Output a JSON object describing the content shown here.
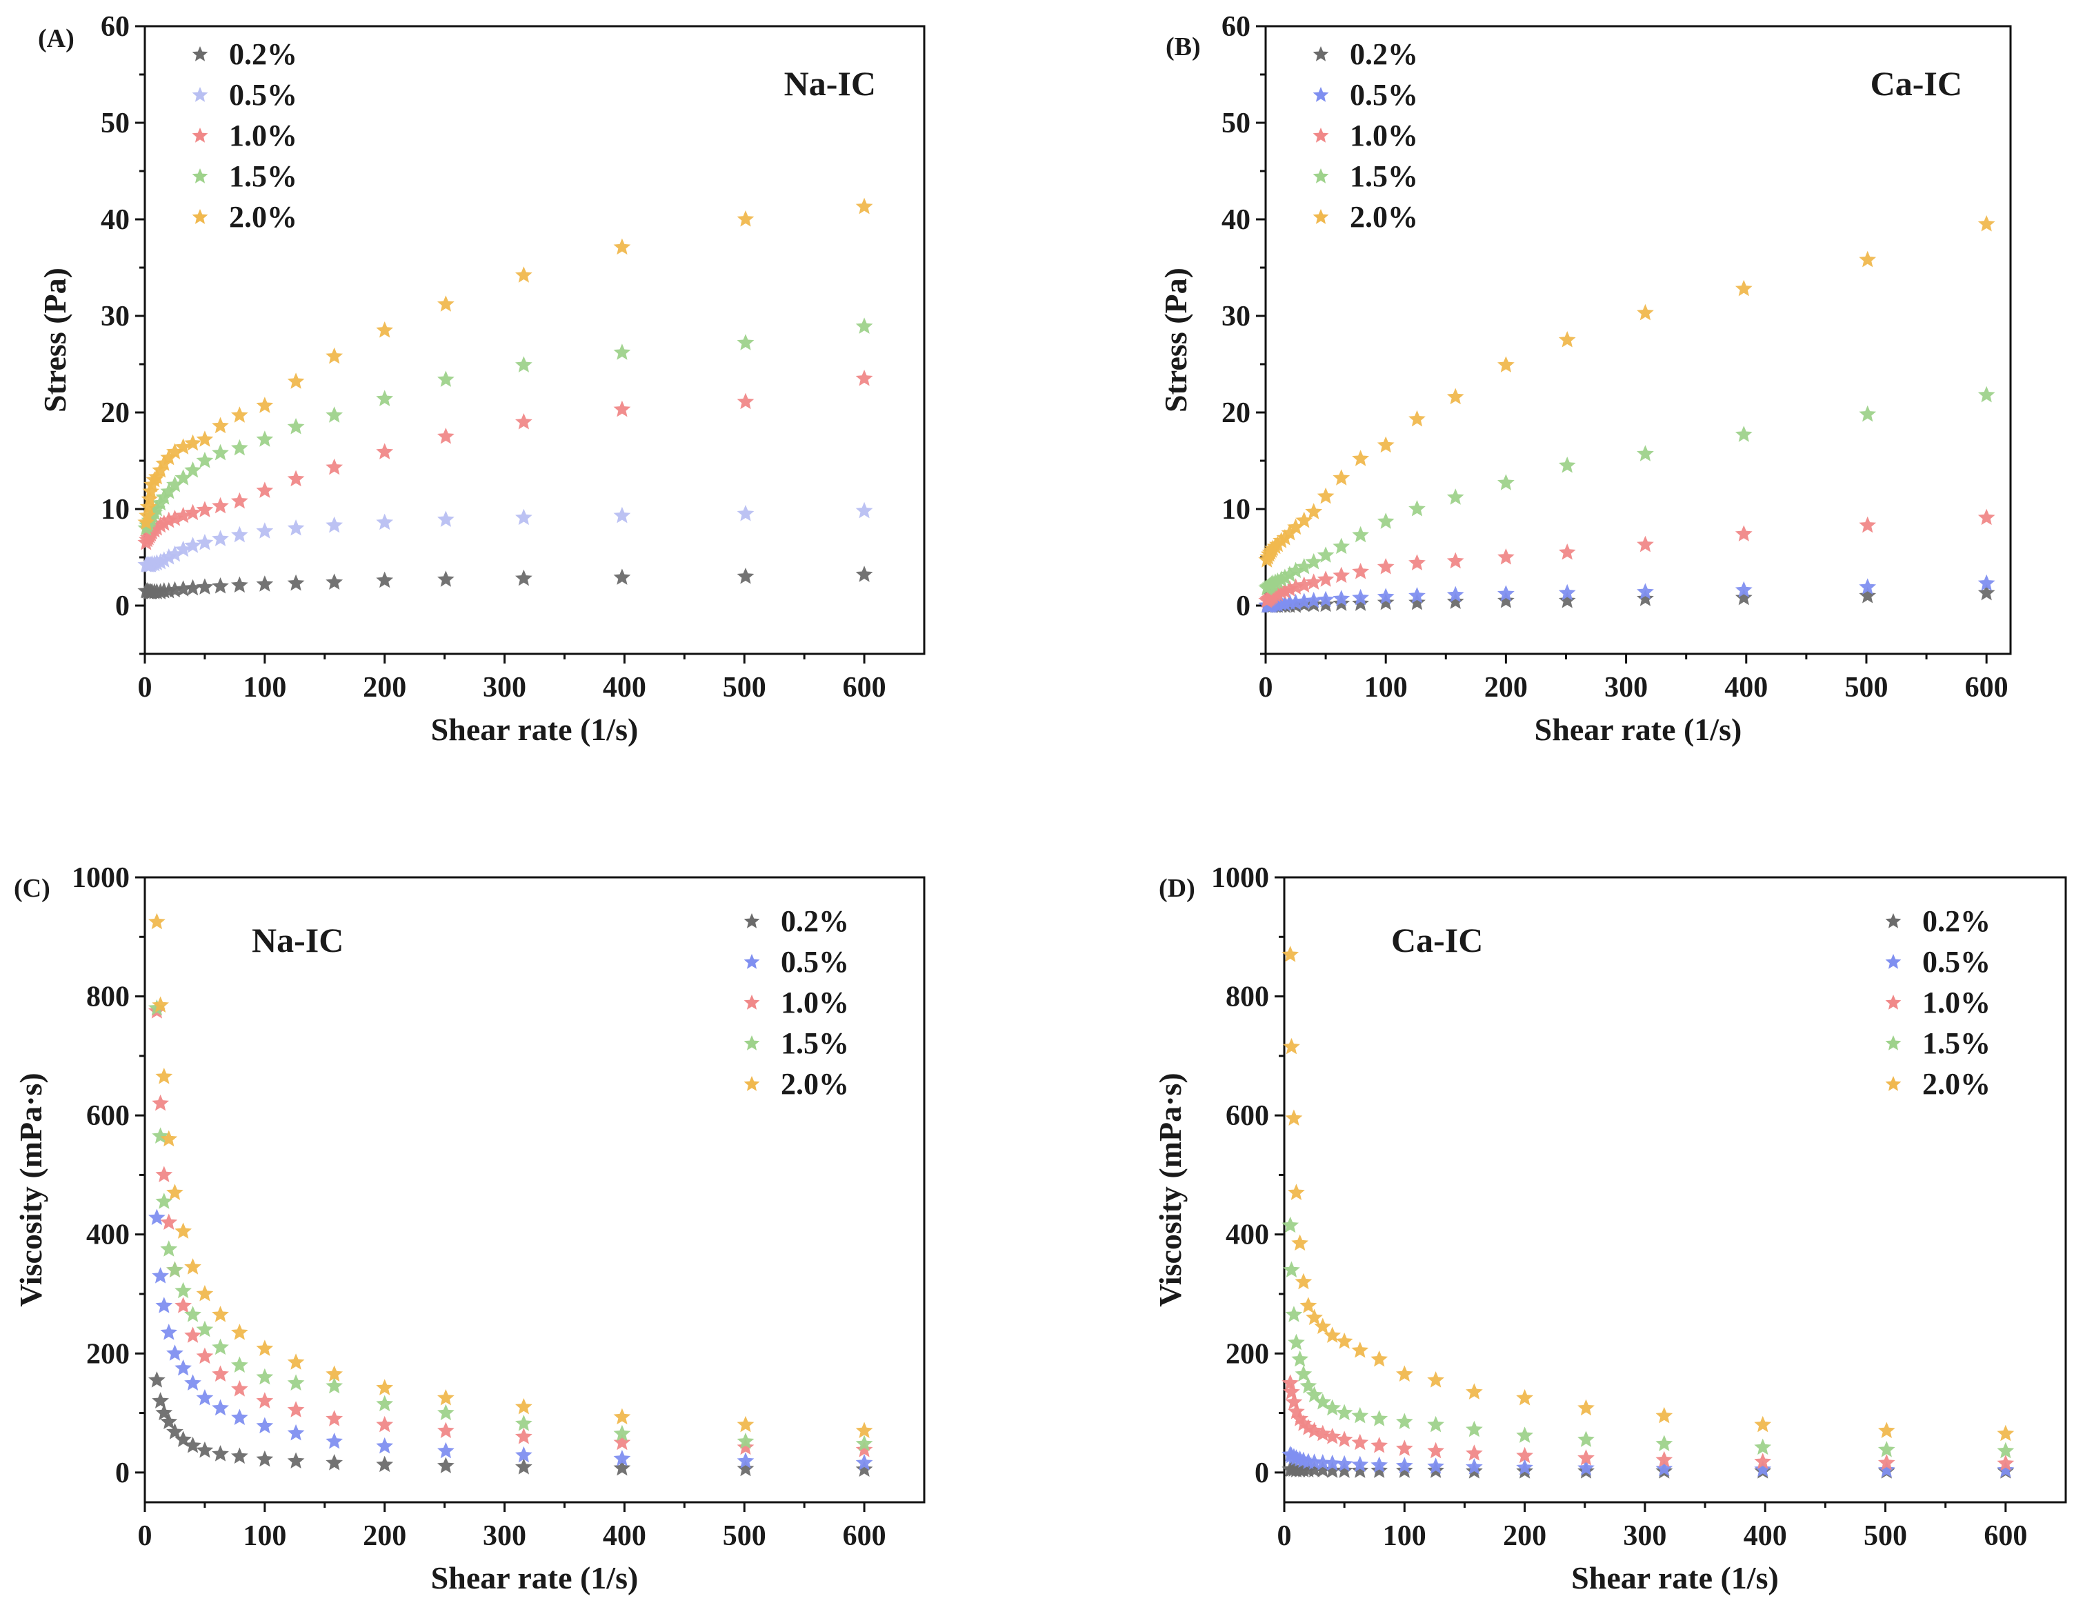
{
  "chart_data": [
    {
      "type": "scatter",
      "panel": "(A)",
      "title": "Na-IC",
      "xlabel": "Shear rate (1/s)",
      "ylabel": "Stress (Pa)",
      "xlim": [
        0,
        650
      ],
      "ylim": [
        -5,
        60
      ],
      "xticks": [
        0,
        100,
        200,
        300,
        400,
        500,
        600
      ],
      "yticks": [
        0,
        10,
        20,
        30,
        40,
        50,
        60
      ],
      "legend_position": "top-left",
      "title_position": "top-right",
      "x": [
        1,
        2,
        3,
        4,
        5,
        6,
        8,
        10,
        13,
        16,
        20,
        25,
        32,
        40,
        50,
        63,
        79,
        100,
        126,
        158,
        200,
        251,
        316,
        398,
        501,
        600
      ],
      "series": [
        {
          "name": "0.2%",
          "color": "#6b6b6b",
          "values": [
            1.5,
            1.5,
            1.4,
            1.4,
            1.4,
            1.4,
            1.4,
            1.4,
            1.4,
            1.5,
            1.5,
            1.6,
            1.7,
            1.8,
            1.9,
            2.0,
            2.1,
            2.2,
            2.3,
            2.4,
            2.6,
            2.7,
            2.8,
            2.9,
            3.0,
            3.2
          ]
        },
        {
          "name": "0.5%",
          "color": "#b8bff2",
          "values": [
            4.2,
            4.2,
            4.2,
            4.2,
            4.2,
            4.3,
            4.3,
            4.4,
            4.5,
            4.7,
            5.0,
            5.3,
            5.8,
            6.2,
            6.5,
            6.9,
            7.3,
            7.7,
            8.0,
            8.3,
            8.6,
            8.9,
            9.1,
            9.3,
            9.5,
            9.8
          ]
        },
        {
          "name": "1.0%",
          "color": "#f08888",
          "values": [
            6.5,
            6.8,
            7.0,
            7.2,
            7.4,
            7.6,
            7.8,
            8.0,
            8.3,
            8.5,
            8.8,
            9.0,
            9.3,
            9.6,
            9.9,
            10.3,
            10.8,
            11.9,
            13.1,
            14.3,
            15.9,
            17.5,
            19.0,
            20.3,
            21.1,
            23.5
          ]
        },
        {
          "name": "1.5%",
          "color": "#9ed28b",
          "values": [
            8.0,
            8.3,
            8.5,
            8.8,
            9.0,
            9.3,
            9.6,
            10.0,
            10.6,
            11.2,
            11.8,
            12.5,
            13.2,
            14.0,
            15.0,
            15.8,
            16.3,
            17.2,
            18.5,
            19.7,
            21.4,
            23.4,
            24.9,
            26.2,
            27.2,
            28.9
          ]
        },
        {
          "name": "2.0%",
          "color": "#f0b84e",
          "values": [
            8.6,
            9.3,
            10.2,
            11.0,
            11.8,
            12.5,
            13.0,
            13.3,
            14.0,
            14.7,
            15.3,
            15.9,
            16.4,
            16.8,
            17.2,
            18.6,
            19.7,
            20.7,
            23.2,
            25.8,
            28.5,
            31.2,
            34.2,
            37.1,
            40.0,
            41.3
          ]
        }
      ]
    },
    {
      "type": "scatter",
      "panel": "(B)",
      "title": "Ca-IC",
      "xlabel": "Shear rate (1/s)",
      "ylabel": "Stress (Pa)",
      "xlim": [
        0,
        620
      ],
      "ylim": [
        -5,
        60
      ],
      "xticks": [
        0,
        100,
        200,
        300,
        400,
        500,
        600
      ],
      "yticks": [
        0,
        10,
        20,
        30,
        40,
        50,
        60
      ],
      "legend_position": "top-left",
      "title_position": "top-right",
      "x": [
        1,
        2,
        3,
        4,
        5,
        6,
        8,
        10,
        13,
        16,
        20,
        25,
        32,
        40,
        50,
        63,
        79,
        100,
        126,
        158,
        200,
        251,
        316,
        398,
        501,
        600
      ],
      "series": [
        {
          "name": "0.2%",
          "color": "#6b6b6b",
          "values": [
            0.0,
            0.0,
            0.0,
            0.0,
            0.0,
            0.0,
            0.0,
            0.0,
            0.0,
            0.0,
            0.0,
            0.0,
            0.1,
            0.1,
            0.1,
            0.2,
            0.2,
            0.3,
            0.3,
            0.4,
            0.5,
            0.5,
            0.7,
            0.8,
            1.0,
            1.3
          ]
        },
        {
          "name": "0.5%",
          "color": "#7f8ff0",
          "values": [
            0.0,
            0.0,
            0.0,
            0.0,
            0.0,
            0.1,
            0.1,
            0.1,
            0.2,
            0.2,
            0.3,
            0.3,
            0.4,
            0.5,
            0.6,
            0.7,
            0.8,
            0.9,
            1.0,
            1.1,
            1.2,
            1.3,
            1.4,
            1.6,
            1.9,
            2.3
          ]
        },
        {
          "name": "1.0%",
          "color": "#f08888",
          "values": [
            0.5,
            0.6,
            0.7,
            0.8,
            0.9,
            1.0,
            1.1,
            1.2,
            1.4,
            1.5,
            1.7,
            1.9,
            2.1,
            2.4,
            2.7,
            3.1,
            3.5,
            4.0,
            4.4,
            4.6,
            5.0,
            5.5,
            6.3,
            7.4,
            8.3,
            9.1
          ]
        },
        {
          "name": "1.5%",
          "color": "#9ed28b",
          "values": [
            1.8,
            1.9,
            2.0,
            2.1,
            2.2,
            2.3,
            2.4,
            2.5,
            2.7,
            2.9,
            3.2,
            3.6,
            4.0,
            4.5,
            5.2,
            6.1,
            7.3,
            8.7,
            10.0,
            11.2,
            12.7,
            14.5,
            15.7,
            17.7,
            19.8,
            21.8
          ]
        },
        {
          "name": "2.0%",
          "color": "#f0b84e",
          "values": [
            4.7,
            5.0,
            5.3,
            5.5,
            5.7,
            5.9,
            6.1,
            6.3,
            6.7,
            7.0,
            7.5,
            8.1,
            8.8,
            9.7,
            11.3,
            13.2,
            15.2,
            16.6,
            19.3,
            21.6,
            24.9,
            27.5,
            30.3,
            32.8,
            35.8,
            39.5
          ]
        }
      ]
    },
    {
      "type": "scatter",
      "panel": "(C)",
      "title": "Na-IC",
      "xlabel": "Shear rate (1/s)",
      "ylabel": "Viscosity (mPa·s)",
      "xlim": [
        0,
        650
      ],
      "ylim": [
        -50,
        1000
      ],
      "xticks": [
        0,
        100,
        200,
        300,
        400,
        500,
        600
      ],
      "yticks": [
        0,
        200,
        400,
        600,
        800,
        1000
      ],
      "legend_position": "top-right",
      "title_position": "top-left",
      "x": [
        10,
        13,
        16,
        20,
        25,
        32,
        40,
        50,
        63,
        79,
        100,
        126,
        158,
        200,
        251,
        316,
        398,
        501,
        600
      ],
      "series": [
        {
          "name": "0.2%",
          "color": "#6b6b6b",
          "values": [
            155,
            120,
            100,
            85,
            68,
            55,
            45,
            37,
            31,
            27,
            22,
            19,
            16,
            13,
            11,
            9,
            7,
            6,
            5
          ]
        },
        {
          "name": "0.5%",
          "color": "#7f8ff0",
          "values": [
            428,
            330,
            280,
            235,
            200,
            175,
            150,
            125,
            108,
            92,
            78,
            66,
            52,
            44,
            36,
            29,
            23,
            19,
            16
          ]
        },
        {
          "name": "1.0%",
          "color": "#f08888",
          "values": [
            775,
            620,
            500,
            420,
            340,
            280,
            230,
            195,
            165,
            140,
            120,
            105,
            90,
            80,
            70,
            60,
            50,
            42,
            38
          ]
        },
        {
          "name": "1.5%",
          "color": "#9ed28b",
          "values": [
            780,
            565,
            455,
            375,
            340,
            305,
            265,
            240,
            210,
            180,
            160,
            150,
            145,
            115,
            100,
            82,
            65,
            52,
            48
          ]
        },
        {
          "name": "2.0%",
          "color": "#f0b84e",
          "values": [
            925,
            785,
            665,
            560,
            470,
            405,
            345,
            300,
            265,
            235,
            208,
            185,
            165,
            142,
            125,
            110,
            93,
            80,
            70
          ]
        }
      ]
    },
    {
      "type": "scatter",
      "panel": "(D)",
      "title": "Ca-IC",
      "xlabel": "Shear rate (1/s)",
      "ylabel": "Viscosity (mPa·s)",
      "xlim": [
        0,
        650
      ],
      "ylim": [
        -50,
        1000
      ],
      "xticks": [
        0,
        100,
        200,
        300,
        400,
        500,
        600
      ],
      "yticks": [
        0,
        200,
        400,
        600,
        800,
        1000
      ],
      "legend_position": "top-right",
      "title_position": "top-left",
      "x": [
        5,
        6,
        8,
        10,
        13,
        16,
        20,
        25,
        32,
        40,
        50,
        63,
        79,
        100,
        126,
        158,
        200,
        251,
        316,
        398,
        501,
        600
      ],
      "series": [
        {
          "name": "0.2%",
          "color": "#6b6b6b",
          "values": [
            5,
            5,
            5,
            4,
            4,
            4,
            4,
            4,
            4,
            3,
            3,
            3,
            3,
            3,
            3,
            2,
            2,
            2,
            2,
            2,
            2,
            2
          ]
        },
        {
          "name": "0.5%",
          "color": "#7f8ff0",
          "values": [
            30,
            28,
            26,
            24,
            22,
            20,
            18,
            17,
            16,
            15,
            14,
            13,
            12,
            11,
            10,
            9,
            8,
            7,
            6,
            5,
            4,
            4
          ]
        },
        {
          "name": "1.0%",
          "color": "#f08888",
          "values": [
            150,
            135,
            118,
            102,
            90,
            82,
            75,
            70,
            65,
            60,
            55,
            50,
            45,
            40,
            36,
            32,
            28,
            24,
            21,
            18,
            16,
            15
          ]
        },
        {
          "name": "1.5%",
          "color": "#9ed28b",
          "values": [
            415,
            340,
            265,
            218,
            190,
            165,
            145,
            130,
            118,
            108,
            100,
            95,
            90,
            85,
            80,
            72,
            62,
            55,
            48,
            42,
            38,
            36
          ]
        },
        {
          "name": "2.0%",
          "color": "#f0b84e",
          "values": [
            870,
            715,
            595,
            470,
            385,
            320,
            280,
            260,
            245,
            230,
            220,
            205,
            190,
            165,
            155,
            135,
            125,
            108,
            95,
            80,
            70,
            65
          ]
        }
      ]
    }
  ]
}
